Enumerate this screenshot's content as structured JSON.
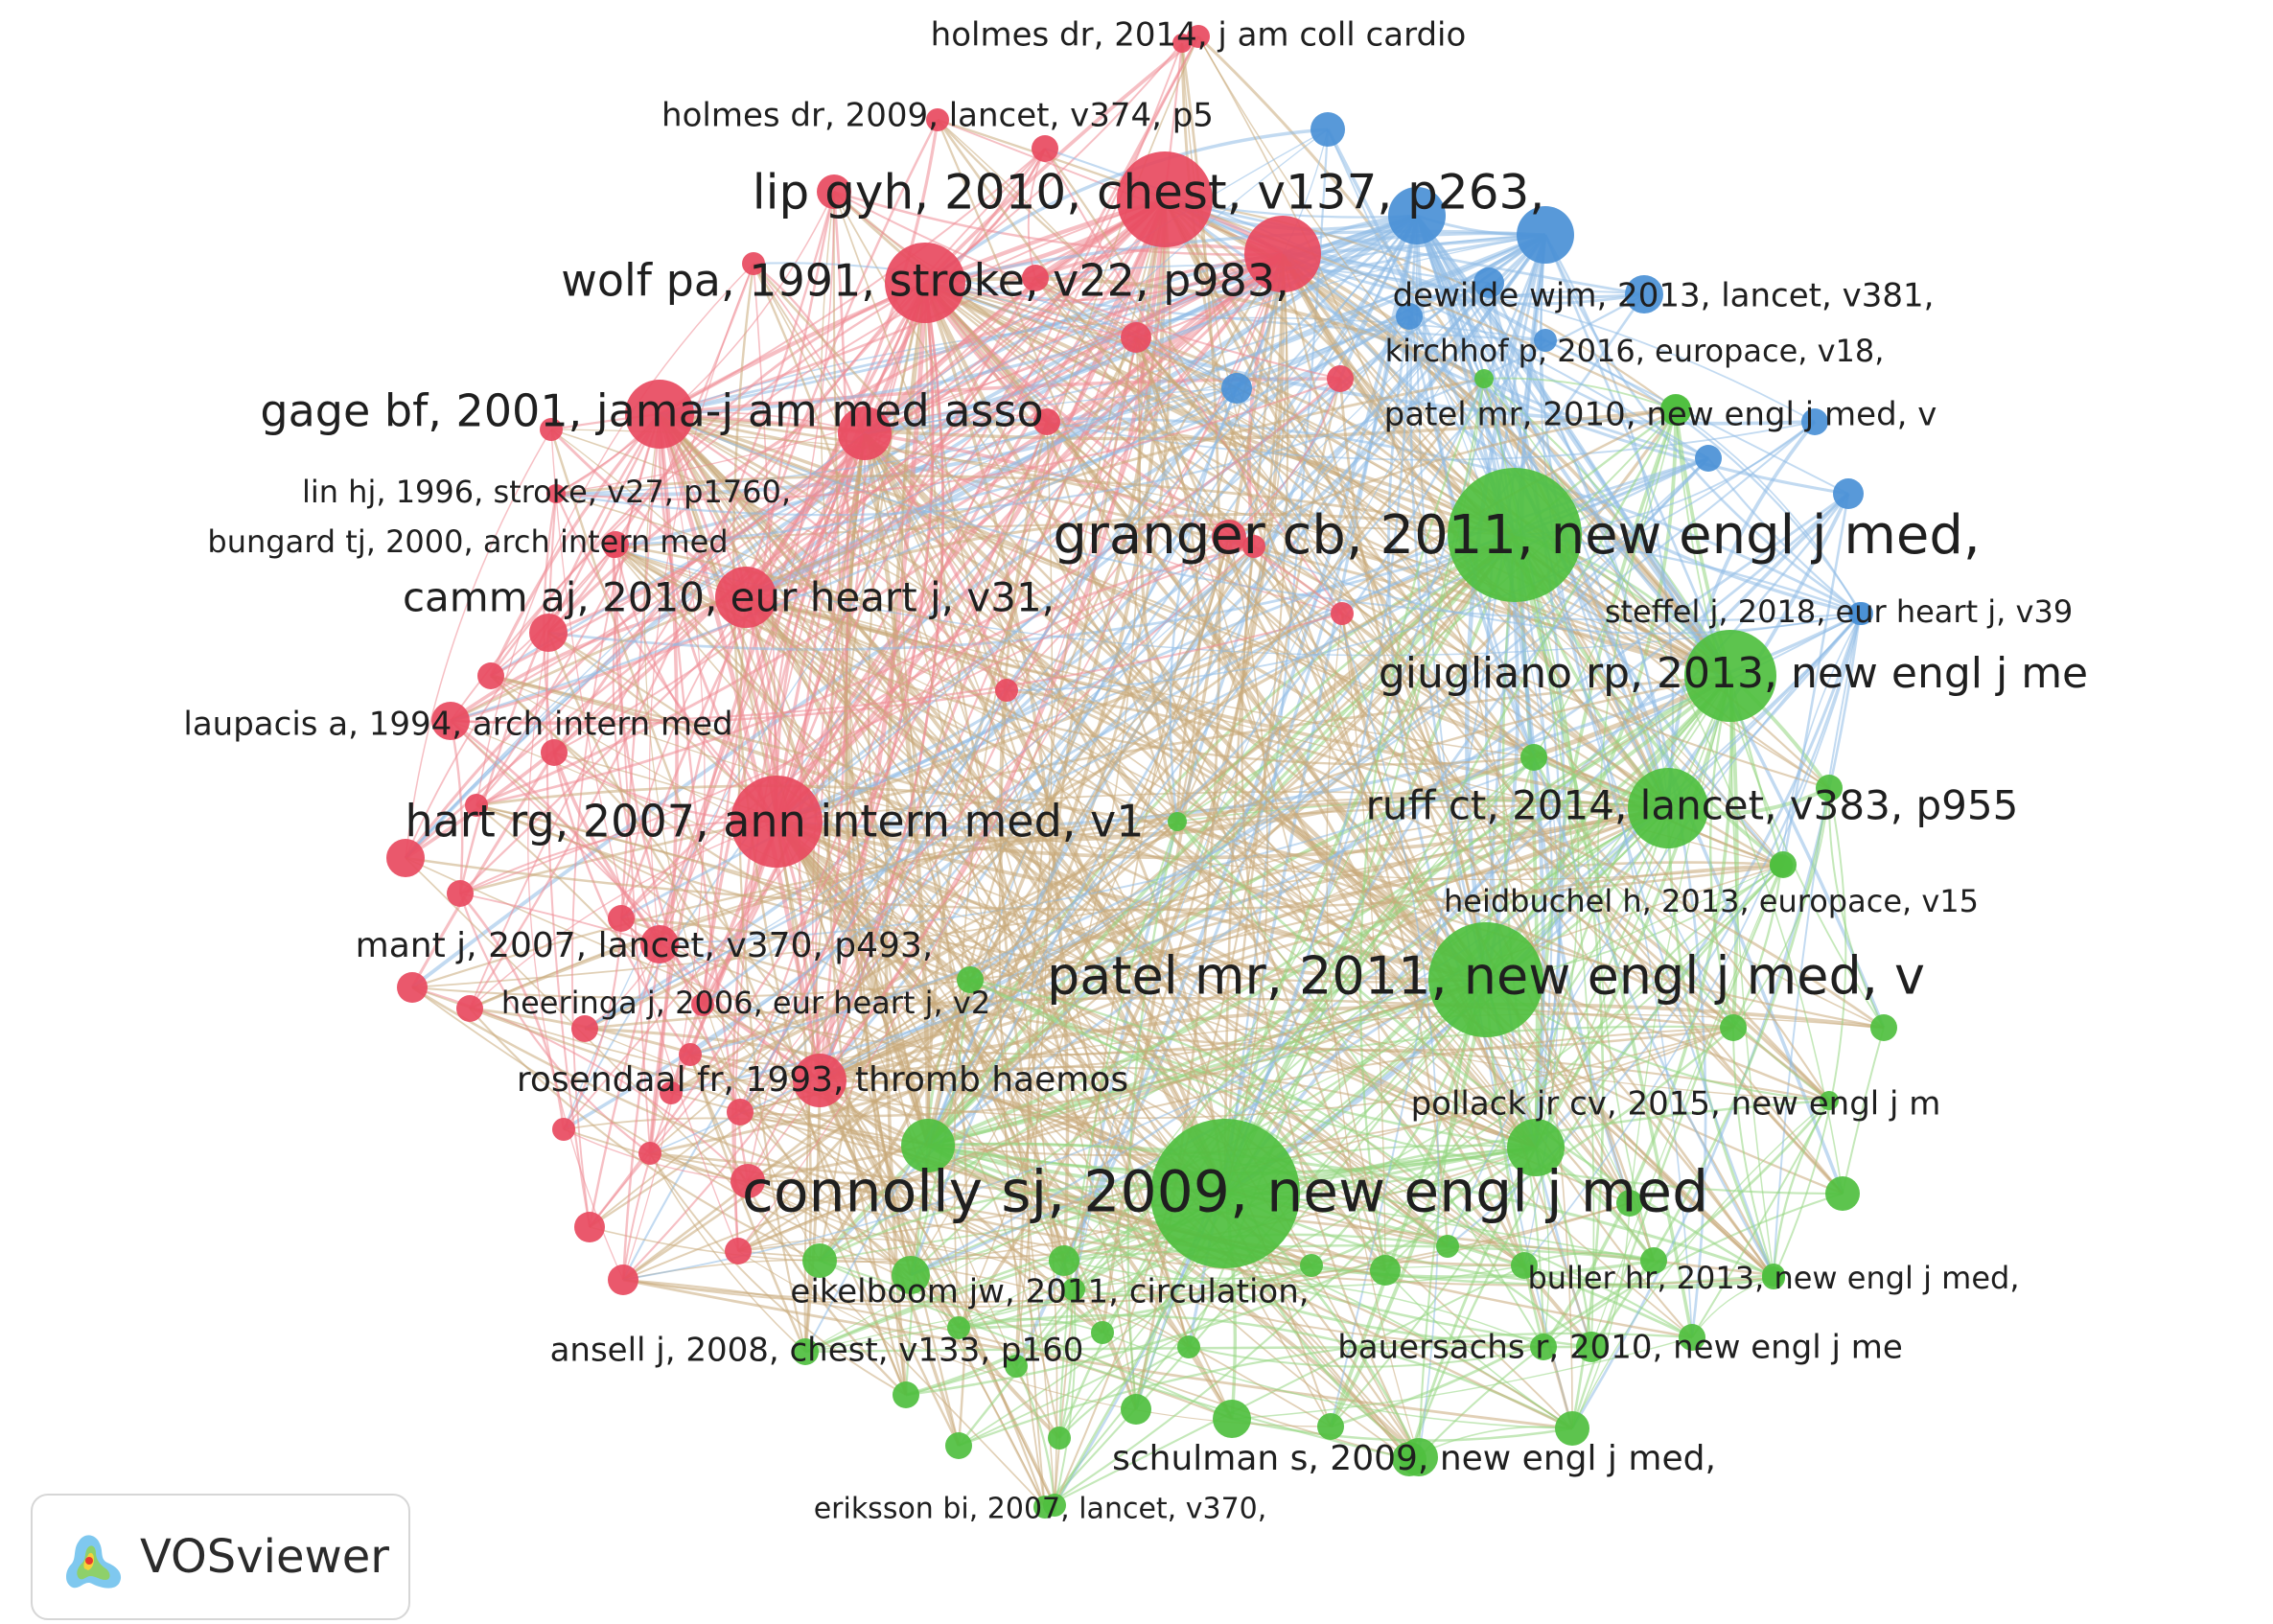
{
  "clusters": {
    "red": {
      "color": "#e84a5f"
    },
    "green": {
      "color": "#4fbf3f"
    },
    "blue": {
      "color": "#4a90d6"
    }
  },
  "edge_colors": {
    "red": "#ef8a94",
    "green": "#93d57f",
    "blue": "#8fbce6",
    "mixed": "#c9a97a"
  },
  "nodes": [
    {
      "id": "n1",
      "label": "holmes dr, 2014, j am coll cardio",
      "cluster": "red",
      "weight": 1
    },
    {
      "id": "n2",
      "label": "holmes dr, 2009, lancet, v374, p5",
      "cluster": "red",
      "weight": 1
    },
    {
      "id": "n3",
      "label": "lip gyh, 2010, chest, v137, p263,",
      "cluster": "red",
      "weight": 5
    },
    {
      "id": "n4",
      "label": "wolf pa, 1991, stroke, v22, p983,",
      "cluster": "red",
      "weight": 4
    },
    {
      "id": "n5",
      "label": "gage bf, 2001, jama-j am med asso",
      "cluster": "red",
      "weight": 4
    },
    {
      "id": "n6",
      "label": "lin hj, 1996, stroke, v27, p1760,",
      "cluster": "red",
      "weight": 1
    },
    {
      "id": "n7",
      "label": "bungard tj, 2000, arch intern med",
      "cluster": "red",
      "weight": 1
    },
    {
      "id": "n8",
      "label": "camm aj, 2010, eur heart j, v31,",
      "cluster": "red",
      "weight": 3
    },
    {
      "id": "n9",
      "label": "laupacis a, 1994, arch intern med",
      "cluster": "red",
      "weight": 2
    },
    {
      "id": "n10",
      "label": "hart rg, 2007, ann intern med, v1",
      "cluster": "red",
      "weight": 5
    },
    {
      "id": "n11",
      "label": "mant j, 2007, lancet, v370, p493,",
      "cluster": "red",
      "weight": 2
    },
    {
      "id": "n12",
      "label": "heeringa j, 2006, eur heart j, v2",
      "cluster": "red",
      "weight": 1
    },
    {
      "id": "n13",
      "label": "rosendaal fr, 1993, thromb haemos",
      "cluster": "red",
      "weight": 2
    },
    {
      "id": "n14",
      "label": "granger cb, 2011, new engl j med,",
      "cluster": "green",
      "weight": 8
    },
    {
      "id": "n15",
      "label": "giugliano rp, 2013, new engl j me",
      "cluster": "green",
      "weight": 5
    },
    {
      "id": "n16",
      "label": "ruff ct, 2014, lancet, v383, p955",
      "cluster": "green",
      "weight": 4
    },
    {
      "id": "n17",
      "label": "heidbuchel h, 2013, europace, v15",
      "cluster": "green",
      "weight": 1
    },
    {
      "id": "n18",
      "label": "patel mr, 2011, new engl j med, v",
      "cluster": "green",
      "weight": 7
    },
    {
      "id": "n19",
      "label": "pollack jr cv, 2015, new engl j m",
      "cluster": "green",
      "weight": 1
    },
    {
      "id": "n20",
      "label": "connolly sj, 2009, new engl j med",
      "cluster": "green",
      "weight": 10
    },
    {
      "id": "n21",
      "label": "eikelboom jw, 2011, circulation,",
      "cluster": "green",
      "weight": 1
    },
    {
      "id": "n22",
      "label": "ansell j, 2008, chest, v133, p160",
      "cluster": "green",
      "weight": 1
    },
    {
      "id": "n23",
      "label": "buller hr, 2013, new engl j med,",
      "cluster": "green",
      "weight": 1
    },
    {
      "id": "n24",
      "label": "bauersachs r, 2010, new engl j me",
      "cluster": "green",
      "weight": 1
    },
    {
      "id": "n25",
      "label": "schulman s, 2009, new engl j med,",
      "cluster": "green",
      "weight": 2
    },
    {
      "id": "n26",
      "label": "eriksson bi, 2007, lancet, v370,",
      "cluster": "green",
      "weight": 1
    },
    {
      "id": "n27",
      "label": "dewilde wjm, 2013, lancet, v381,",
      "cluster": "blue",
      "weight": 2
    },
    {
      "id": "n28",
      "label": "kirchhof p, 2016, europace, v18,",
      "cluster": "blue",
      "weight": 1
    },
    {
      "id": "n29",
      "label": "patel mr, 2010, new engl j med, v",
      "cluster": "green",
      "weight": 1
    },
    {
      "id": "n30",
      "label": "steffel j, 2018, eur heart j, v39",
      "cluster": "blue",
      "weight": 1
    }
  ],
  "logo": {
    "text": "VOSviewer"
  }
}
